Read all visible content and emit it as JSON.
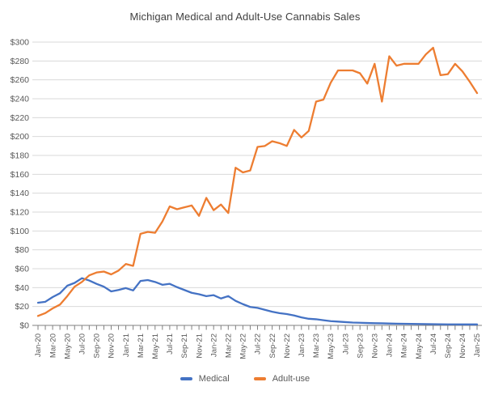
{
  "chart_data": {
    "type": "line",
    "title": "Michigan Medical and Adult-Use Cannabis Sales",
    "xlabel": "",
    "ylabel": "",
    "x_categories": [
      "Jan-20",
      "Feb-20",
      "Mar-20",
      "Apr-20",
      "May-20",
      "Jun-20",
      "Jul-20",
      "Aug-20",
      "Sep-20",
      "Oct-20",
      "Nov-20",
      "Dec-20",
      "Jan-21",
      "Feb-21",
      "Mar-21",
      "Apr-21",
      "May-21",
      "Jun-21",
      "Jul-21",
      "Aug-21",
      "Sep-21",
      "Oct-21",
      "Nov-21",
      "Dec-21",
      "Jan-22",
      "Feb-22",
      "Mar-22",
      "Apr-22",
      "May-22",
      "Jun-22",
      "Jul-22",
      "Aug-22",
      "Sep-22",
      "Oct-22",
      "Nov-22",
      "Dec-22",
      "Jan-23",
      "Feb-23",
      "Mar-23",
      "Apr-23",
      "May-23",
      "Jun-23",
      "Jul-23",
      "Aug-23",
      "Sep-23",
      "Oct-23",
      "Nov-23",
      "Dec-23",
      "Jan-24",
      "Feb-24",
      "Mar-24",
      "Apr-24",
      "May-24",
      "Jun-24",
      "Jul-24",
      "Aug-24",
      "Sep-24",
      "Oct-24",
      "Nov-24",
      "Dec-24",
      "Jan-25"
    ],
    "x_label_every": 2,
    "y_axis": {
      "min": 0,
      "max": 300,
      "step": 20,
      "prefix": "$",
      "tick_labels": [
        "$0",
        "$20",
        "$40",
        "$60",
        "$80",
        "$100",
        "$120",
        "$140",
        "$160",
        "$180",
        "$200",
        "$220",
        "$240",
        "$260",
        "$280",
        "$300"
      ]
    },
    "grid": true,
    "legend_position": "bottom",
    "series": [
      {
        "name": "Medical",
        "color": "#4472C4",
        "values": [
          24,
          25,
          30,
          34,
          42,
          45,
          50,
          47.5,
          44,
          41,
          36,
          37.5,
          39.5,
          37,
          47,
          48,
          46,
          43,
          44,
          40.5,
          37.5,
          34.5,
          33,
          31,
          32,
          28.5,
          31,
          26,
          22.5,
          19.5,
          18.5,
          16.5,
          14.5,
          13,
          12,
          10.5,
          8.5,
          7,
          6.5,
          5.5,
          4.5,
          4,
          3.5,
          3,
          2.8,
          2.5,
          2.3,
          2.2,
          2,
          1.8,
          1.7,
          1.6,
          1.5,
          1.4,
          1.3,
          1.2,
          1.1,
          1.1,
          1,
          1,
          1
        ]
      },
      {
        "name": "Adult-use",
        "color": "#ED7D31",
        "values": [
          10,
          13,
          18,
          22,
          31,
          41,
          46,
          53,
          56,
          57,
          54,
          58,
          65,
          63,
          97,
          99,
          98,
          110,
          126,
          123,
          125,
          127,
          116,
          135,
          122,
          128,
          119,
          167,
          162,
          164,
          189,
          190,
          195,
          193,
          190,
          207,
          199,
          206,
          237,
          239,
          257,
          270,
          270,
          270,
          267,
          256,
          277,
          237,
          285,
          275,
          277,
          277,
          277,
          287,
          294,
          265,
          266,
          277,
          269,
          258,
          246
        ]
      }
    ]
  },
  "colors": {
    "background": "#FFFFFF",
    "gridline": "#D9D9D9",
    "axis": "#808080",
    "tick_label": "#595959",
    "title": "#3F3F3F"
  }
}
